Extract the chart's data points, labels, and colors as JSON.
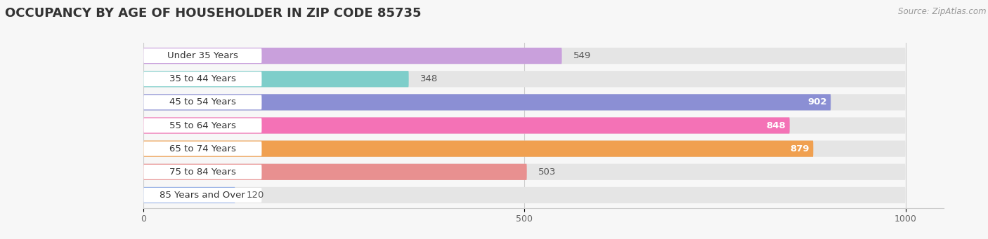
{
  "title": "OCCUPANCY BY AGE OF HOUSEHOLDER IN ZIP CODE 85735",
  "source": "Source: ZipAtlas.com",
  "categories": [
    "Under 35 Years",
    "35 to 44 Years",
    "45 to 54 Years",
    "55 to 64 Years",
    "65 to 74 Years",
    "75 to 84 Years",
    "85 Years and Over"
  ],
  "values": [
    549,
    348,
    902,
    848,
    879,
    503,
    120
  ],
  "bar_colors": [
    "#c9a0dc",
    "#7ececa",
    "#8b8fd4",
    "#f472b6",
    "#f0a050",
    "#e89090",
    "#a0b8e8"
  ],
  "xlim_max": 1000,
  "xticks": [
    0,
    500,
    1000
  ],
  "bg_color": "#f7f7f7",
  "bar_bg_color": "#e5e5e5",
  "label_pill_color": "#ffffff",
  "title_fontsize": 13,
  "label_fontsize": 9.5,
  "value_fontsize": 9.5,
  "tick_fontsize": 9
}
